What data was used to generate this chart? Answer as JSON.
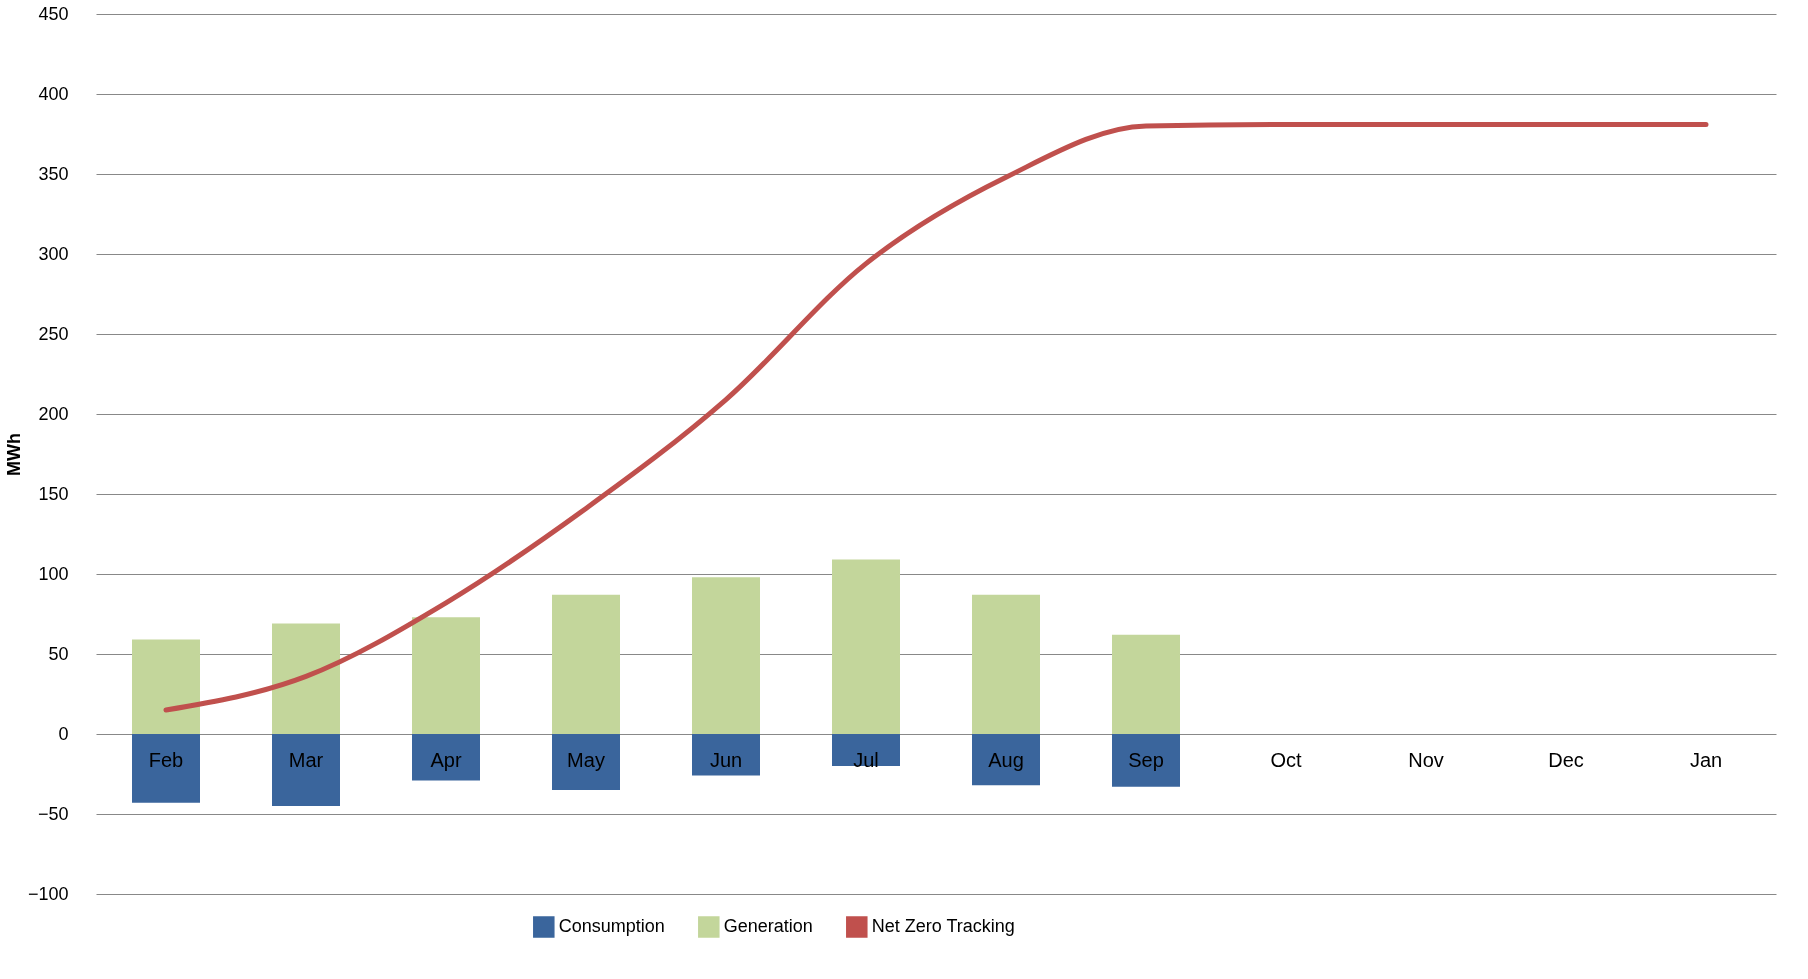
{
  "chart_data": {
    "type": "bar",
    "ylabel": "MWh",
    "categories": [
      "Feb",
      "Mar",
      "Apr",
      "May",
      "Jun",
      "Jul",
      "Aug",
      "Sep",
      "Oct",
      "Nov",
      "Dec",
      "Jan"
    ],
    "stacked": true,
    "series": [
      {
        "name": "Consumption",
        "color": "#3a659c",
        "values": [
          -43,
          -45,
          -29,
          -35,
          -26,
          -20,
          -32,
          -33,
          null,
          null,
          null,
          null
        ]
      },
      {
        "name": "Generation",
        "color": "#c3d69b",
        "values": [
          59,
          69,
          73,
          87,
          98,
          109,
          87,
          62,
          null,
          null,
          null,
          null
        ]
      },
      {
        "name": "Net Zero Tracking",
        "type": "line",
        "color": "#c0504d",
        "values": [
          15,
          36,
          82,
          141,
          209,
          294,
          348,
          380,
          381,
          381,
          381,
          381
        ]
      }
    ],
    "ylim": [
      -100,
      450
    ],
    "yticks": [
      -100,
      -50,
      0,
      50,
      100,
      150,
      200,
      250,
      300,
      350,
      400,
      450
    ],
    "grid": "y",
    "legend": "bottom"
  }
}
